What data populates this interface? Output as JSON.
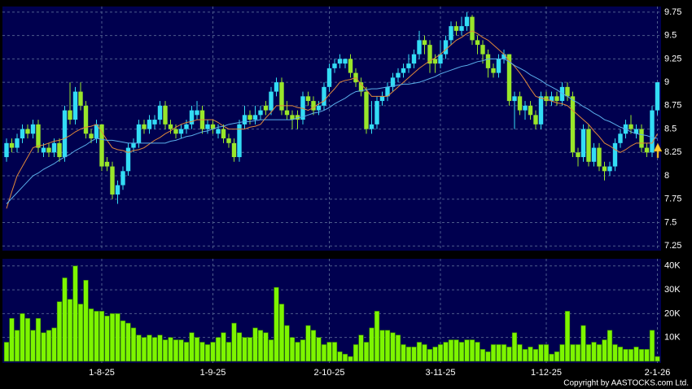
{
  "chart_data": [
    {
      "type": "candlestick",
      "categories": [
        null,
        null,
        null,
        null,
        null,
        null,
        null,
        null,
        null,
        null,
        null,
        null,
        null,
        null,
        null,
        null,
        null,
        null,
        "1-8-25",
        null,
        null,
        null,
        null,
        null,
        null,
        null,
        null,
        null,
        null,
        null,
        null,
        null,
        null,
        null,
        null,
        null,
        null,
        null,
        null,
        "1-9-25",
        null,
        null,
        null,
        null,
        null,
        null,
        null,
        null,
        null,
        null,
        null,
        null,
        null,
        null,
        null,
        null,
        null,
        null,
        null,
        null,
        null,
        "2-10-25",
        null,
        null,
        null,
        null,
        null,
        null,
        null,
        null,
        null,
        null,
        null,
        null,
        null,
        null,
        null,
        null,
        null,
        null,
        null,
        null,
        "3-11-25",
        null,
        null,
        null,
        null,
        null,
        null,
        null,
        null,
        null,
        null,
        null,
        null,
        null,
        null,
        null,
        null,
        null,
        null,
        null,
        "1-12-25",
        null,
        null,
        null,
        null,
        null,
        null,
        null,
        null,
        null,
        null,
        null,
        null,
        null,
        null,
        null,
        null,
        null,
        null,
        null,
        null,
        "2-1-26",
        null
      ],
      "ohlc": [
        [
          8.2,
          8.4,
          8.15,
          8.35
        ],
        [
          8.35,
          8.4,
          8.25,
          8.3
        ],
        [
          8.3,
          8.45,
          8.25,
          8.4
        ],
        [
          8.4,
          8.55,
          8.35,
          8.5
        ],
        [
          8.5,
          8.55,
          8.4,
          8.45
        ],
        [
          8.45,
          8.6,
          8.4,
          8.55
        ],
        [
          8.55,
          8.6,
          8.25,
          8.3
        ],
        [
          8.25,
          8.35,
          8.2,
          8.3
        ],
        [
          8.3,
          8.35,
          8.2,
          8.25
        ],
        [
          8.25,
          8.4,
          8.2,
          8.35
        ],
        [
          8.35,
          8.4,
          8.15,
          8.2
        ],
        [
          8.2,
          8.75,
          8.15,
          8.7
        ],
        [
          8.7,
          9.0,
          8.55,
          8.6
        ],
        [
          8.6,
          8.95,
          8.55,
          8.9
        ],
        [
          8.9,
          9.0,
          8.7,
          8.75
        ],
        [
          8.75,
          8.8,
          8.4,
          8.45
        ],
        [
          8.45,
          8.5,
          8.35,
          8.4
        ],
        [
          8.4,
          8.6,
          8.35,
          8.55
        ],
        [
          8.55,
          8.55,
          8.05,
          8.1
        ],
        [
          8.15,
          8.2,
          8.05,
          8.1
        ],
        [
          8.1,
          8.15,
          7.75,
          7.8
        ],
        [
          7.8,
          7.95,
          7.7,
          7.9
        ],
        [
          7.9,
          8.1,
          7.85,
          8.05
        ],
        [
          8.05,
          8.35,
          8.0,
          8.3
        ],
        [
          8.3,
          8.4,
          8.25,
          8.35
        ],
        [
          8.35,
          8.6,
          8.3,
          8.55
        ],
        [
          8.55,
          8.6,
          8.45,
          8.5
        ],
        [
          8.5,
          8.65,
          8.45,
          8.6
        ],
        [
          8.55,
          8.65,
          8.5,
          8.6
        ],
        [
          8.6,
          8.8,
          8.55,
          8.75
        ],
        [
          8.75,
          8.8,
          8.5,
          8.55
        ],
        [
          8.55,
          8.6,
          8.45,
          8.5
        ],
        [
          8.5,
          8.55,
          8.4,
          8.45
        ],
        [
          8.45,
          8.55,
          8.4,
          8.5
        ],
        [
          8.5,
          8.6,
          8.45,
          8.55
        ],
        [
          8.55,
          8.75,
          8.5,
          8.7
        ],
        [
          8.65,
          8.8,
          8.6,
          8.7
        ],
        [
          8.7,
          8.75,
          8.45,
          8.5
        ],
        [
          8.5,
          8.6,
          8.45,
          8.55
        ],
        [
          8.55,
          8.6,
          8.45,
          8.5
        ],
        [
          8.45,
          8.55,
          8.4,
          8.5
        ],
        [
          8.5,
          8.55,
          8.35,
          8.4
        ],
        [
          8.4,
          8.45,
          8.3,
          8.35
        ],
        [
          8.35,
          8.4,
          8.15,
          8.2
        ],
        [
          8.2,
          8.6,
          8.15,
          8.55
        ],
        [
          8.55,
          8.75,
          8.5,
          8.65
        ],
        [
          8.65,
          8.7,
          8.55,
          8.6
        ],
        [
          8.6,
          8.75,
          8.55,
          8.65
        ],
        [
          8.65,
          8.75,
          8.6,
          8.7
        ],
        [
          8.75,
          8.8,
          8.65,
          8.7
        ],
        [
          8.7,
          8.95,
          8.65,
          8.9
        ],
        [
          8.9,
          9.05,
          8.85,
          9.0
        ],
        [
          9.0,
          9.05,
          8.65,
          8.7
        ],
        [
          8.7,
          8.8,
          8.6,
          8.65
        ],
        [
          8.65,
          8.7,
          8.5,
          8.6
        ],
        [
          8.65,
          8.7,
          8.5,
          8.6
        ],
        [
          8.6,
          8.9,
          8.55,
          8.85
        ],
        [
          8.85,
          8.9,
          8.75,
          8.8
        ],
        [
          8.8,
          8.85,
          8.65,
          8.7
        ],
        [
          8.7,
          8.8,
          8.65,
          8.75
        ],
        [
          8.75,
          9.0,
          8.7,
          8.95
        ],
        [
          8.95,
          9.2,
          8.9,
          9.15
        ],
        [
          9.15,
          9.25,
          9.1,
          9.2
        ],
        [
          9.2,
          9.3,
          9.15,
          9.25
        ],
        [
          9.2,
          9.25,
          9.15,
          9.25
        ],
        [
          9.25,
          9.3,
          9.05,
          9.1
        ],
        [
          9.1,
          9.15,
          8.95,
          9.0
        ],
        [
          9.0,
          9.05,
          8.85,
          8.9
        ],
        [
          8.9,
          8.95,
          8.45,
          8.5
        ],
        [
          8.5,
          8.8,
          8.45,
          8.55
        ],
        [
          8.55,
          8.85,
          8.5,
          8.8
        ],
        [
          8.8,
          8.9,
          8.75,
          8.85
        ],
        [
          8.85,
          9.0,
          8.8,
          8.95
        ],
        [
          8.95,
          9.1,
          8.9,
          9.05
        ],
        [
          9.05,
          9.15,
          9.0,
          9.1
        ],
        [
          9.1,
          9.2,
          9.05,
          9.15
        ],
        [
          9.15,
          9.3,
          9.1,
          9.2
        ],
        [
          9.2,
          9.35,
          9.15,
          9.3
        ],
        [
          9.3,
          9.55,
          9.25,
          9.45
        ],
        [
          9.45,
          9.5,
          9.3,
          9.4
        ],
        [
          9.4,
          9.45,
          9.1,
          9.2
        ],
        [
          9.25,
          9.3,
          9.1,
          9.2
        ],
        [
          9.2,
          9.45,
          9.15,
          9.3
        ],
        [
          9.3,
          9.5,
          9.25,
          9.45
        ],
        [
          9.45,
          9.65,
          9.4,
          9.6
        ],
        [
          9.6,
          9.65,
          9.5,
          9.55
        ],
        [
          9.55,
          9.7,
          9.5,
          9.6
        ],
        [
          9.6,
          9.75,
          9.55,
          9.7
        ],
        [
          9.7,
          9.72,
          9.4,
          9.45
        ],
        [
          9.45,
          9.5,
          9.3,
          9.4
        ],
        [
          9.4,
          9.45,
          9.2,
          9.3
        ],
        [
          9.3,
          9.35,
          9.05,
          9.15
        ],
        [
          9.15,
          9.2,
          9.05,
          9.1
        ],
        [
          9.1,
          9.3,
          9.05,
          9.25
        ],
        [
          9.25,
          9.35,
          9.2,
          9.3
        ],
        [
          9.3,
          9.3,
          8.75,
          8.8
        ],
        [
          8.8,
          8.9,
          8.5,
          8.85
        ],
        [
          8.85,
          8.9,
          8.65,
          8.7
        ],
        [
          8.7,
          8.8,
          8.6,
          8.75
        ],
        [
          8.75,
          8.8,
          8.6,
          8.65
        ],
        [
          8.65,
          8.7,
          8.5,
          8.55
        ],
        [
          8.55,
          8.9,
          8.5,
          8.85
        ],
        [
          8.85,
          8.9,
          8.75,
          8.8
        ],
        [
          8.8,
          8.9,
          8.75,
          8.85
        ],
        [
          8.85,
          8.9,
          8.75,
          8.8
        ],
        [
          8.8,
          9.0,
          8.75,
          8.95
        ],
        [
          8.95,
          9.0,
          8.8,
          8.85
        ],
        [
          8.85,
          8.9,
          8.2,
          8.25
        ],
        [
          8.25,
          8.3,
          8.1,
          8.2
        ],
        [
          8.2,
          8.55,
          8.15,
          8.5
        ],
        [
          8.5,
          8.55,
          8.1,
          8.15
        ],
        [
          8.15,
          8.35,
          8.1,
          8.3
        ],
        [
          8.3,
          8.35,
          8.05,
          8.1
        ],
        [
          8.1,
          8.15,
          7.95,
          8.05
        ],
        [
          8.05,
          8.15,
          8.0,
          8.1
        ],
        [
          8.1,
          8.4,
          8.05,
          8.35
        ],
        [
          8.35,
          8.5,
          8.3,
          8.45
        ],
        [
          8.45,
          8.6,
          8.4,
          8.55
        ],
        [
          8.55,
          8.65,
          8.45,
          8.5
        ],
        [
          8.45,
          8.55,
          8.4,
          8.5
        ],
        [
          8.5,
          8.55,
          8.25,
          8.3
        ],
        [
          8.3,
          8.35,
          8.2,
          8.25
        ],
        [
          8.25,
          8.75,
          8.2,
          8.7
        ],
        [
          8.7,
          9.0,
          8.65,
          9.0
        ]
      ],
      "up_color": "#33ddf5",
      "down_color": "#99e62a",
      "lines": [
        {
          "color": "#e0883a",
          "values": [
            7.65,
            7.83,
            8.0,
            8.1,
            8.2,
            8.3,
            8.32,
            8.33,
            8.35,
            8.37,
            8.38,
            8.4,
            8.43,
            8.47,
            8.5,
            8.52,
            8.53,
            8.55,
            8.47,
            8.38,
            8.3,
            8.28,
            8.27,
            8.25,
            8.27,
            8.28,
            8.3,
            8.34,
            8.38,
            8.41,
            8.45,
            8.48,
            8.52,
            8.55,
            8.57,
            8.58,
            8.6,
            8.6,
            8.6,
            8.6,
            8.57,
            8.53,
            8.5,
            8.5,
            8.5,
            8.5,
            8.52,
            8.53,
            8.55,
            8.62,
            8.68,
            8.75,
            8.75,
            8.75,
            8.75,
            8.73,
            8.72,
            8.7,
            8.73,
            8.77,
            8.8,
            8.87,
            8.93,
            9.0,
            9.02,
            9.03,
            9.05,
            8.98,
            8.92,
            8.85,
            8.85,
            8.85,
            8.85,
            8.9,
            8.95,
            9.0,
            9.05,
            9.1,
            9.15,
            9.19,
            9.23,
            9.26,
            9.3,
            9.35,
            9.4,
            9.45,
            9.48,
            9.52,
            9.55,
            9.52,
            9.48,
            9.45,
            9.4,
            9.35,
            9.3,
            9.23,
            9.17,
            9.1,
            9.02,
            8.93,
            8.85,
            8.83,
            8.82,
            8.8,
            8.78,
            8.77,
            8.75,
            8.7,
            8.65,
            8.6,
            8.55,
            8.48,
            8.42,
            8.35,
            8.32,
            8.28,
            8.25,
            8.28,
            8.32,
            8.35,
            8.35,
            8.35,
            8.35,
            8.45
          ]
        },
        {
          "color": "#5aaeea",
          "values": [
            7.7,
            7.76,
            7.82,
            7.88,
            7.94,
            8.0,
            8.03,
            8.07,
            8.1,
            8.13,
            8.17,
            8.2,
            8.23,
            8.27,
            8.3,
            8.33,
            8.37,
            8.4,
            8.39,
            8.38,
            8.38,
            8.37,
            8.36,
            8.35,
            8.35,
            8.35,
            8.35,
            8.35,
            8.35,
            8.35,
            8.35,
            8.37,
            8.38,
            8.4,
            8.42,
            8.43,
            8.45,
            8.47,
            8.48,
            8.5,
            8.52,
            8.53,
            8.55,
            8.56,
            8.57,
            8.58,
            8.58,
            8.59,
            8.6,
            8.6,
            8.6,
            8.6,
            8.6,
            8.6,
            8.6,
            8.62,
            8.63,
            8.65,
            8.67,
            8.68,
            8.7,
            8.73,
            8.77,
            8.8,
            8.83,
            8.87,
            8.9,
            8.91,
            8.92,
            8.93,
            8.93,
            8.94,
            8.95,
            8.96,
            8.97,
            8.98,
            8.98,
            8.99,
            9.0,
            9.02,
            9.04,
            9.06,
            9.09,
            9.11,
            9.13,
            9.15,
            9.17,
            9.18,
            9.2,
            9.22,
            9.23,
            9.25,
            9.25,
            9.25,
            9.25,
            9.22,
            9.18,
            9.15,
            9.12,
            9.08,
            9.05,
            9.02,
            8.98,
            8.95,
            8.92,
            8.88,
            8.85,
            8.81,
            8.78,
            8.74,
            8.71,
            8.67,
            8.64,
            8.6,
            8.58,
            8.55,
            8.52,
            8.5,
            8.47,
            8.45,
            8.44,
            8.43,
            8.41,
            8.4
          ]
        }
      ],
      "ylim": [
        7.2,
        9.81
      ],
      "yticks": [
        7.25,
        7.5,
        7.75,
        8,
        8.25,
        8.5,
        8.75,
        9,
        9.25,
        9.5,
        9.75
      ],
      "grid": true
    },
    {
      "type": "bar",
      "color": "#7df500",
      "values": [
        8000,
        18000,
        13000,
        20000,
        18000,
        13000,
        18000,
        12000,
        13000,
        14000,
        25000,
        35000,
        26000,
        40000,
        24000,
        34000,
        22000,
        21000,
        21000,
        19000,
        20000,
        20000,
        17000,
        16000,
        14000,
        11000,
        10000,
        11000,
        10000,
        11000,
        9000,
        10000,
        9000,
        9000,
        8000,
        12000,
        10000,
        8000,
        7000,
        8000,
        10000,
        12000,
        8000,
        16000,
        12000,
        10000,
        10000,
        14000,
        13000,
        12000,
        9000,
        31000,
        24000,
        15000,
        10000,
        8000,
        9000,
        15000,
        13000,
        10000,
        7000,
        8000,
        8000,
        4000,
        3000,
        2000,
        7000,
        11000,
        8000,
        14000,
        21000,
        13000,
        13000,
        12000,
        11000,
        7000,
        6000,
        6000,
        8000,
        7000,
        5000,
        6000,
        7000,
        8000,
        9000,
        9000,
        8000,
        9000,
        9000,
        8000,
        5000,
        4000,
        7000,
        7000,
        7000,
        6000,
        12000,
        7000,
        5000,
        6000,
        5000,
        7000,
        7000,
        3000,
        4000,
        7000,
        21000,
        7000,
        7000,
        15000,
        7000,
        8000,
        7000,
        9000,
        13000,
        7000,
        6000,
        5000,
        5000,
        6000,
        5000,
        5000,
        13000,
        2000
      ],
      "ylim": [
        -700,
        43000
      ],
      "yticks": [
        {
          "value": 10000,
          "label": "10K"
        },
        {
          "value": 20000,
          "label": "20K"
        },
        {
          "value": 30000,
          "label": "30K"
        },
        {
          "value": 40000,
          "label": "40K"
        }
      ],
      "grid": true
    }
  ],
  "footer": {
    "copyright": "Copyright by AASTOCKS.com Ltd."
  }
}
